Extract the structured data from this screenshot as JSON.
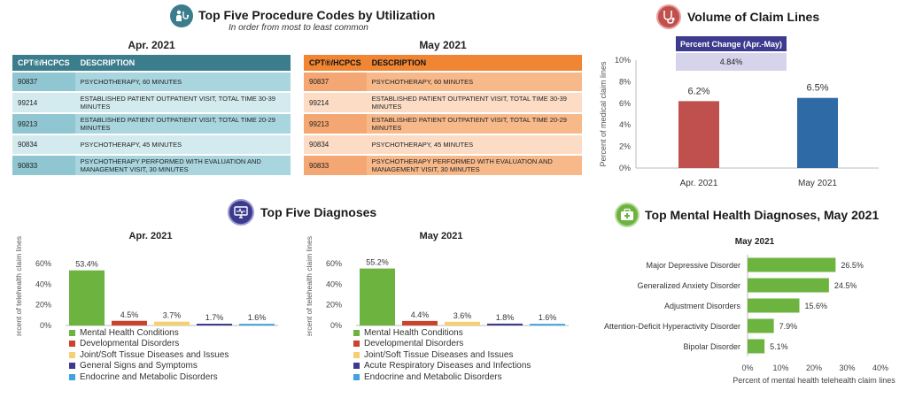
{
  "procedures": {
    "title": "Top Five Procedure Codes by Utilization",
    "subtitle": "In order from most to least common",
    "icon": "stethoscope-person-icon",
    "col_code": "CPT®/HCPCS",
    "col_desc": "DESCRIPTION",
    "apr": {
      "title": "Apr. 2021",
      "rows": [
        {
          "code": "90837",
          "desc": "PSYCHOTHERAPY, 60 MINUTES"
        },
        {
          "code": "99214",
          "desc": "ESTABLISHED PATIENT OUTPATIENT VISIT, TOTAL TIME 30-39 MINUTES"
        },
        {
          "code": "99213",
          "desc": "ESTABLISHED PATIENT OUTPATIENT VISIT, TOTAL TIME 20-29 MINUTES"
        },
        {
          "code": "90834",
          "desc": "PSYCHOTHERAPY, 45 MINUTES"
        },
        {
          "code": "90833",
          "desc": "PSYCHOTHERAPY PERFORMED WITH EVALUATION AND MANAGEMENT VISIT, 30 MINUTES"
        }
      ]
    },
    "may": {
      "title": "May 2021",
      "rows": [
        {
          "code": "90837",
          "desc": "PSYCHOTHERAPY, 60 MINUTES"
        },
        {
          "code": "99214",
          "desc": "ESTABLISHED PATIENT OUTPATIENT VISIT, TOTAL TIME 30-39 MINUTES"
        },
        {
          "code": "99213",
          "desc": "ESTABLISHED PATIENT OUTPATIENT VISIT, TOTAL TIME 20-29 MINUTES"
        },
        {
          "code": "90834",
          "desc": "PSYCHOTHERAPY, 45 MINUTES"
        },
        {
          "code": "90833",
          "desc": "PSYCHOTHERAPY PERFORMED WITH EVALUATION AND MANAGEMENT VISIT, 30 MINUTES"
        }
      ]
    }
  },
  "volume": {
    "title": "Volume of Claim Lines",
    "icon": "stethoscope-icon",
    "pct_change_label": "Percent Change (Apr.-May)",
    "pct_change_value": "4.84%"
  },
  "diagnoses": {
    "title": "Top Five Diagnoses",
    "icon": "telehealth-monitor-icon"
  },
  "mental": {
    "title": "Top Mental Health Diagnoses, May 2021",
    "icon": "medical-kit-icon"
  },
  "colors": {
    "teal": "#3b7d8c",
    "orange": "#f08634",
    "apr_bar": "#c0504d",
    "may_bar": "#2e6aa6",
    "green": "#6db33f",
    "red": "#c8442d",
    "yellow": "#f4d071",
    "navy": "#3c3a8c",
    "blue": "#3fa3e0",
    "pct_box_dark": "#3d3b8e",
    "pct_box_light": "#d6d4ea"
  },
  "chart_data": [
    {
      "id": "volume",
      "type": "bar",
      "categories": [
        "Apr. 2021",
        "May 2021"
      ],
      "values": [
        6.2,
        6.5
      ],
      "value_labels": [
        "6.2%",
        "6.5%"
      ],
      "ylabel": "Percent of medical claim lines",
      "ylim": [
        0,
        10
      ],
      "yticks": [
        "0%",
        "2%",
        "4%",
        "6%",
        "8%",
        "10%"
      ],
      "colors": [
        "#c0504d",
        "#2e6aa6"
      ],
      "grid": false
    },
    {
      "id": "diag_apr",
      "type": "bar",
      "title": "Apr. 2021",
      "ylabel": "Percent of telehealth claim lines",
      "ylim": [
        0,
        60
      ],
      "yticks": [
        "0%",
        "20%",
        "40%",
        "60%"
      ],
      "categories": [
        "Mental Health Conditions",
        "Developmental Disorders",
        "Joint/Soft Tissue Diseases and Issues",
        "General Signs and Symptoms",
        "Endocrine and Metabolic Disorders"
      ],
      "values": [
        53.4,
        4.5,
        3.7,
        1.7,
        1.6
      ],
      "value_labels": [
        "53.4%",
        "4.5%",
        "3.7%",
        "1.7%",
        "1.6%"
      ],
      "colors": [
        "#6db33f",
        "#c8442d",
        "#f4d071",
        "#3c3a8c",
        "#3fa3e0"
      ],
      "legend": "bottom"
    },
    {
      "id": "diag_may",
      "type": "bar",
      "title": "May 2021",
      "ylabel": "Percent of telehealth claim lines",
      "ylim": [
        0,
        60
      ],
      "yticks": [
        "0%",
        "20%",
        "40%",
        "60%"
      ],
      "categories": [
        "Mental Health Conditions",
        "Developmental Disorders",
        "Joint/Soft Tissue Diseases and Issues",
        "Acute Respiratory Diseases and Infections",
        "Endocrine and Metabolic Disorders"
      ],
      "values": [
        55.2,
        4.4,
        3.6,
        1.8,
        1.6
      ],
      "value_labels": [
        "55.2%",
        "4.4%",
        "3.6%",
        "1.8%",
        "1.6%"
      ],
      "colors": [
        "#6db33f",
        "#c8442d",
        "#f4d071",
        "#3c3a8c",
        "#3fa3e0"
      ],
      "legend": "bottom"
    },
    {
      "id": "mental",
      "type": "bar",
      "orientation": "horizontal",
      "title": "May 2021",
      "xlabel": "Percent of mental health telehealth claim lines",
      "xlim": [
        0,
        40
      ],
      "xticks": [
        "0%",
        "10%",
        "20%",
        "30%",
        "40%"
      ],
      "categories": [
        "Major Depressive Disorder",
        "Generalized Anxiety Disorder",
        "Adjustment Disorders",
        "Attention-Deficit Hyperactivity Disorder",
        "Bipolar Disorder"
      ],
      "values": [
        26.5,
        24.5,
        15.6,
        7.9,
        5.1
      ],
      "value_labels": [
        "26.5%",
        "24.5%",
        "15.6%",
        "7.9%",
        "5.1%"
      ],
      "color": "#6db33f"
    }
  ]
}
